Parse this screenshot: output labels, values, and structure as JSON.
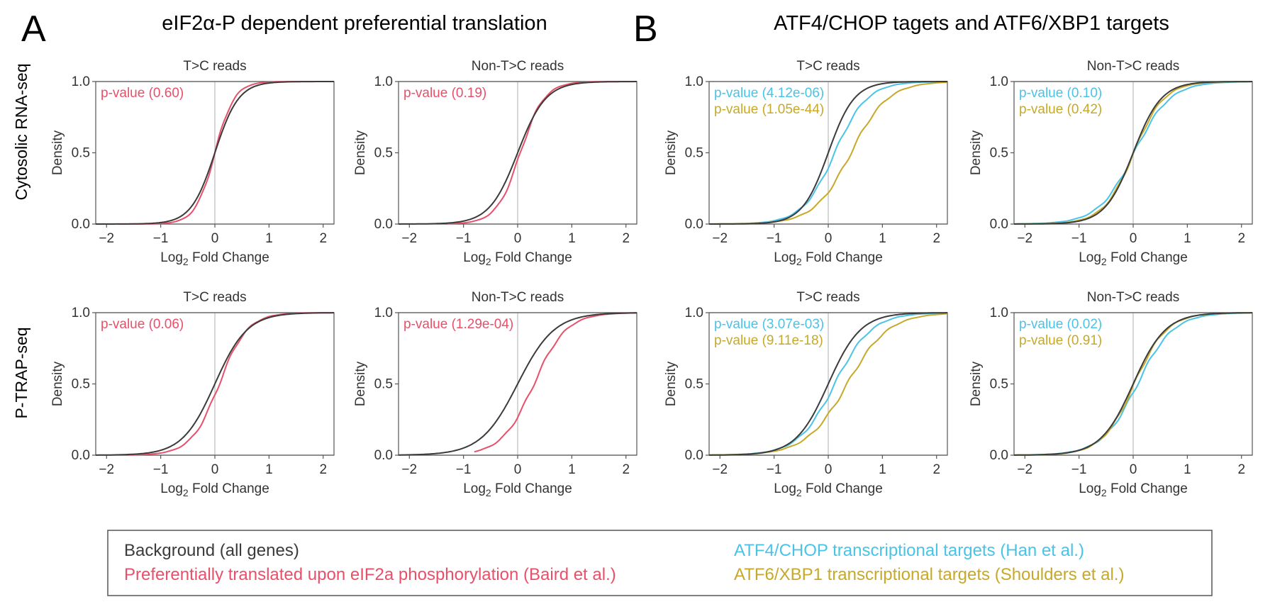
{
  "figure": {
    "panel_a": {
      "letter": "A",
      "title": "eIF2α-P dependent preferential translation"
    },
    "panel_b": {
      "letter": "B",
      "title": "ATF4/CHOP tagets and ATF6/XBP1 targets"
    },
    "row_labels": [
      "Cytosolic RNA-seq",
      "P-TRAP-seq"
    ],
    "legend": [
      {
        "key": "background",
        "label": "Background (all genes)"
      },
      {
        "key": "baird",
        "label": "Preferentially translated upon eIF2a phosphorylation (Baird et al.)"
      },
      {
        "key": "han",
        "label": "ATF4/CHOP transcriptional targets (Han et al.)"
      },
      {
        "key": "shoulders",
        "label": "ATF6/XBP1 transcriptional targets (Shoulders et al.)"
      }
    ]
  },
  "colors": {
    "background": "#3b3b3b",
    "baird": "#e8506a",
    "han": "#49c3e8",
    "shoulders": "#c6a92a",
    "axis": "#555555",
    "grid": "#c8c8c8",
    "text": "#333333"
  },
  "chart_data": [
    {
      "type": "line",
      "panel": "A",
      "row": 0,
      "col": 0,
      "title": "T>C reads",
      "xlabel": "Log2 Fold Change",
      "ylabel": "Density",
      "xlim": [
        -2.2,
        2.2
      ],
      "ylim": [
        0,
        1
      ],
      "xticks": [
        -2,
        -1,
        0,
        1,
        2
      ],
      "yticks": [
        "0.0",
        "0.5",
        "1.0"
      ],
      "series": [
        {
          "key": "background",
          "mu": 0.0,
          "s": 0.22,
          "xmin": -2.2
        },
        {
          "key": "baird",
          "mu": 0.0,
          "s": 0.18,
          "xmin": -1.8,
          "pvalue": "p-value (0.60)"
        }
      ]
    },
    {
      "type": "line",
      "panel": "A",
      "row": 0,
      "col": 1,
      "title": "Non-T>C reads",
      "xlabel": "Log2 Fold Change",
      "ylabel": "Density",
      "xlim": [
        -2.2,
        2.2
      ],
      "ylim": [
        0,
        1
      ],
      "xticks": [
        -2,
        -1,
        0,
        1,
        2
      ],
      "yticks": [
        "0.0",
        "0.5",
        "1.0"
      ],
      "series": [
        {
          "key": "background",
          "mu": 0.0,
          "s": 0.26,
          "xmin": -2.2
        },
        {
          "key": "baird",
          "mu": 0.05,
          "s": 0.22,
          "xmin": -1.3,
          "pvalue": "p-value (0.19)"
        }
      ]
    },
    {
      "type": "line",
      "panel": "B",
      "row": 0,
      "col": 2,
      "title": "T>C reads",
      "xlabel": "Log2 Fold Change",
      "ylabel": "Density",
      "xlim": [
        -2.2,
        2.2
      ],
      "ylim": [
        0,
        1
      ],
      "xticks": [
        -2,
        -1,
        0,
        1,
        2
      ],
      "yticks": [
        "0.0",
        "0.5",
        "1.0"
      ],
      "series": [
        {
          "key": "background",
          "mu": 0.0,
          "s": 0.24,
          "xmin": -2.2
        },
        {
          "key": "han",
          "mu": 0.12,
          "s": 0.3,
          "xmin": -2.2,
          "pvalue": "p-value (4.12e-06)"
        },
        {
          "key": "shoulders",
          "mu": 0.42,
          "s": 0.34,
          "xmin": -2.2,
          "pvalue": "p-value (1.05e-44)"
        }
      ]
    },
    {
      "type": "line",
      "panel": "B",
      "row": 0,
      "col": 3,
      "title": "Non-T>C reads",
      "xlabel": "Log2 Fold Change",
      "ylabel": "Density",
      "xlim": [
        -2.2,
        2.2
      ],
      "ylim": [
        0,
        1
      ],
      "xticks": [
        -2,
        -1,
        0,
        1,
        2
      ],
      "yticks": [
        "0.0",
        "0.5",
        "1.0"
      ],
      "series": [
        {
          "key": "background",
          "mu": 0.0,
          "s": 0.26,
          "xmin": -2.2
        },
        {
          "key": "han",
          "mu": 0.02,
          "s": 0.33,
          "xmin": -2.2,
          "pvalue": "p-value (0.10)"
        },
        {
          "key": "shoulders",
          "mu": 0.01,
          "s": 0.28,
          "xmin": -2.2,
          "pvalue": "p-value (0.42)"
        }
      ]
    },
    {
      "type": "line",
      "panel": "A",
      "row": 1,
      "col": 0,
      "title": "T>C reads",
      "xlabel": "Log2 Fold Change",
      "ylabel": "Density",
      "xlim": [
        -2.2,
        2.2
      ],
      "ylim": [
        0,
        1
      ],
      "xticks": [
        -2,
        -1,
        0,
        1,
        2
      ],
      "yticks": [
        "0.0",
        "0.5",
        "1.0"
      ],
      "series": [
        {
          "key": "background",
          "mu": 0.0,
          "s": 0.3,
          "xmin": -2.2
        },
        {
          "key": "baird",
          "mu": 0.08,
          "s": 0.26,
          "xmin": -1.6,
          "pvalue": "p-value (0.06)"
        }
      ]
    },
    {
      "type": "line",
      "panel": "A",
      "row": 1,
      "col": 1,
      "title": "Non-T>C reads",
      "xlabel": "Log2 Fold Change",
      "ylabel": "Density",
      "xlim": [
        -2.2,
        2.2
      ],
      "ylim": [
        0,
        1
      ],
      "xticks": [
        -2,
        -1,
        0,
        1,
        2
      ],
      "yticks": [
        "0.0",
        "0.5",
        "1.0"
      ],
      "series": [
        {
          "key": "background",
          "mu": 0.0,
          "s": 0.34,
          "xmin": -2.2
        },
        {
          "key": "baird",
          "mu": 0.3,
          "s": 0.3,
          "xmin": -0.8,
          "pvalue": "p-value (1.29e-04)"
        }
      ]
    },
    {
      "type": "line",
      "panel": "B",
      "row": 1,
      "col": 2,
      "title": "T>C reads",
      "xlabel": "Log2 Fold Change",
      "ylabel": "Density",
      "xlim": [
        -2.2,
        2.2
      ],
      "ylim": [
        0,
        1
      ],
      "xticks": [
        -2,
        -1,
        0,
        1,
        2
      ],
      "yticks": [
        "0.0",
        "0.5",
        "1.0"
      ],
      "series": [
        {
          "key": "background",
          "mu": 0.0,
          "s": 0.3,
          "xmin": -2.2
        },
        {
          "key": "han",
          "mu": 0.12,
          "s": 0.34,
          "xmin": -2.2,
          "pvalue": "p-value (3.07e-03)"
        },
        {
          "key": "shoulders",
          "mu": 0.35,
          "s": 0.38,
          "xmin": -2.2,
          "pvalue": "p-value (9.11e-18)"
        }
      ]
    },
    {
      "type": "line",
      "panel": "B",
      "row": 1,
      "col": 3,
      "title": "Non-T>C reads",
      "xlabel": "Log2 Fold Change",
      "ylabel": "Density",
      "xlim": [
        -2.2,
        2.2
      ],
      "ylim": [
        0,
        1
      ],
      "xticks": [
        -2,
        -1,
        0,
        1,
        2
      ],
      "yticks": [
        "0.0",
        "0.5",
        "1.0"
      ],
      "series": [
        {
          "key": "background",
          "mu": 0.0,
          "s": 0.3,
          "xmin": -2.2
        },
        {
          "key": "han",
          "mu": 0.08,
          "s": 0.33,
          "xmin": -2.2,
          "pvalue": "p-value (0.02)"
        },
        {
          "key": "shoulders",
          "mu": 0.02,
          "s": 0.3,
          "xmin": -2.2,
          "pvalue": "p-value (0.91)"
        }
      ]
    }
  ]
}
